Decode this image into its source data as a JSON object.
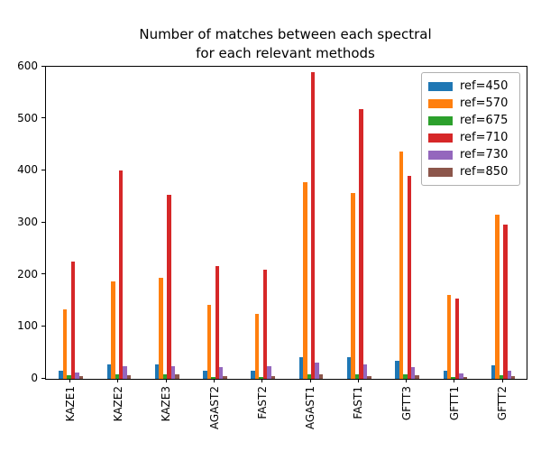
{
  "figure": {
    "title_line1": "Number of matches between each spectral",
    "title_line2": "for each relevant methods"
  },
  "chart_data": {
    "type": "bar",
    "title": "Number of matches between each spectral\nfor each relevant methods",
    "xlabel": "",
    "ylabel": "",
    "ylim": [
      0,
      600
    ],
    "yticks": [
      0,
      100,
      200,
      300,
      400,
      500,
      600
    ],
    "grid": false,
    "legend_position": "upper right",
    "categories": [
      "KAZE1",
      "KAZE2",
      "KAZE3",
      "AGAST2",
      "FAST2",
      "AGAST1",
      "FAST1",
      "GFTT3",
      "GFTT1",
      "GFTT2"
    ],
    "series": [
      {
        "name": "ref=450",
        "color": "#1f77b4",
        "values": [
          15,
          28,
          27,
          16,
          15,
          41,
          42,
          35,
          16,
          26
        ]
      },
      {
        "name": "ref=570",
        "color": "#ff7f0e",
        "values": [
          134,
          188,
          195,
          142,
          125,
          378,
          357,
          437,
          162,
          315
        ]
      },
      {
        "name": "ref=675",
        "color": "#2ca02c",
        "values": [
          7,
          9,
          9,
          4,
          3,
          9,
          9,
          9,
          4,
          7
        ]
      },
      {
        "name": "ref=710",
        "color": "#d62728",
        "values": [
          225,
          400,
          353,
          216,
          210,
          590,
          519,
          390,
          155,
          296
        ]
      },
      {
        "name": "ref=730",
        "color": "#9467bd",
        "values": [
          13,
          24,
          24,
          23,
          25,
          32,
          28,
          23,
          10,
          16
        ]
      },
      {
        "name": "ref=850",
        "color": "#8c564b",
        "values": [
          6,
          7,
          8,
          5,
          5,
          8,
          6,
          7,
          3,
          6
        ]
      }
    ]
  }
}
